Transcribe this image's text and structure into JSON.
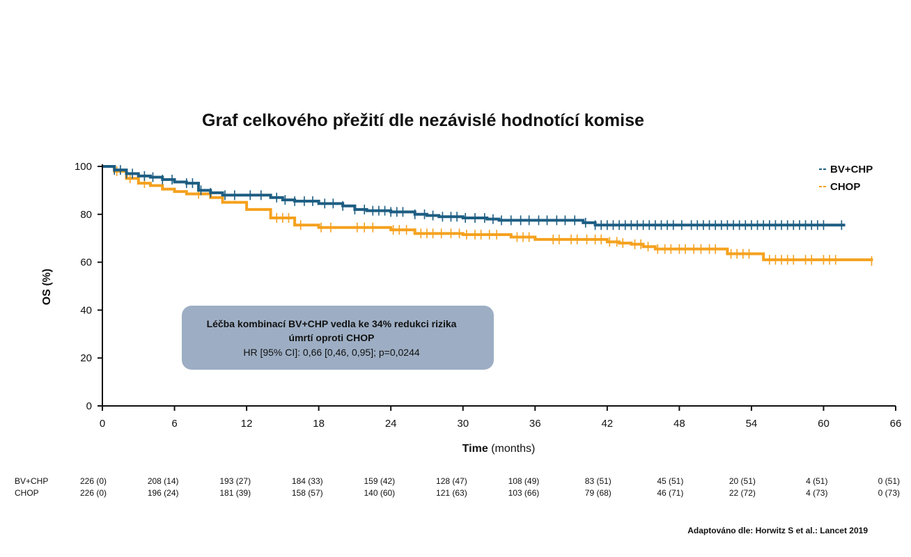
{
  "chart_data": {
    "type": "line",
    "subtype": "kaplan-meier",
    "title": "Graf celkového přežití dle nezávislé hodnotící komise",
    "ylabel": "OS (%)",
    "xlabel_bold": "Time",
    "xlabel_rest": "(months)",
    "xlim": [
      0,
      66
    ],
    "ylim": [
      0,
      100
    ],
    "xticks": [
      0,
      6,
      12,
      18,
      24,
      30,
      36,
      42,
      48,
      54,
      60,
      66
    ],
    "yticks": [
      0,
      20,
      40,
      60,
      80,
      100
    ],
    "grid": false,
    "legend_position": "top-right",
    "series": [
      {
        "name": "BV+CHP",
        "color": "#1d5d82",
        "x": [
          0,
          1,
          2,
          3,
          4,
          5,
          6,
          7,
          8,
          9,
          10,
          12,
          14,
          15,
          16,
          18,
          20,
          21,
          22,
          24,
          26,
          27,
          28,
          30,
          32,
          33,
          36,
          40,
          41,
          61.8
        ],
        "y": [
          100,
          98.5,
          97,
          96,
          95.5,
          94.5,
          93.5,
          93,
          90,
          89,
          88,
          88,
          87,
          86,
          85.5,
          84.5,
          83.5,
          82,
          81.5,
          81,
          80,
          79.5,
          79,
          78.5,
          78,
          77.5,
          77.5,
          76.5,
          75.5,
          75.5
        ],
        "censor_x": [
          1,
          1.5,
          2,
          2.5,
          3.5,
          4.2,
          5,
          5.8,
          7,
          7.5,
          8.2,
          9,
          10.2,
          11,
          12.3,
          13.2,
          14.5,
          15.2,
          16,
          16.8,
          17.5,
          18.5,
          19.2,
          20,
          21,
          21.8,
          22.5,
          23,
          23.5,
          24,
          24.5,
          25,
          26,
          26.8,
          27.5,
          28.3,
          29,
          29.5,
          30.2,
          31,
          31.8,
          32.5,
          33.2,
          34,
          34.8,
          35.5,
          36.3,
          37,
          37.8,
          38.5,
          39.3,
          40.2,
          41,
          41.5,
          42,
          42.5,
          43,
          43.5,
          44,
          44.5,
          45,
          45.5,
          46,
          46.5,
          47,
          47.5,
          48.2,
          49,
          49.5,
          50,
          50.5,
          51,
          51.5,
          52,
          52.5,
          53,
          53.5,
          54,
          54.5,
          55,
          55.5,
          56,
          56.5,
          57,
          57.5,
          58,
          58.5,
          59,
          59.5,
          60,
          61.5
        ]
      },
      {
        "name": "CHOP",
        "color": "#f5a11e",
        "x": [
          0,
          1,
          2,
          3,
          4,
          5,
          6,
          7,
          9,
          10,
          12,
          14,
          16,
          18,
          21,
          24,
          26,
          30,
          34,
          36,
          42,
          43,
          44,
          45,
          46,
          47,
          52,
          55,
          64
        ],
        "y": [
          100,
          98,
          95,
          93,
          92,
          90.5,
          89.5,
          88.5,
          87,
          85,
          82,
          78.5,
          75.5,
          74.5,
          74.5,
          73.5,
          72,
          71.5,
          70.5,
          69.5,
          68.5,
          68,
          67.5,
          66.5,
          65.5,
          65.5,
          63.5,
          61,
          60.5
        ],
        "censor_x": [
          1.2,
          2.3,
          3.5,
          8,
          14.5,
          15,
          15.5,
          16.5,
          18.2,
          19,
          21.2,
          21.8,
          22.5,
          24.2,
          24.7,
          25.3,
          26.5,
          27,
          27.5,
          28.2,
          29,
          29.7,
          30.3,
          31,
          31.5,
          32.2,
          32.8,
          34.5,
          35,
          35.5,
          37.5,
          38,
          39,
          39.5,
          40.3,
          41,
          41.5,
          42.2,
          42.8,
          43.3,
          44.3,
          44.8,
          45.4,
          46.2,
          46.8,
          47.3,
          48,
          48.5,
          49.2,
          49.8,
          50.5,
          51,
          52.3,
          52.8,
          53.3,
          53.8,
          55.5,
          56,
          56.5,
          57,
          57.5,
          58.5,
          59,
          60,
          60.5,
          61,
          64
        ]
      }
    ],
    "annotation": {
      "line1": "Léčba kombinací BV+CHP vedla ke 34% redukci rizika",
      "line2": "úmrtí oproti CHOP",
      "line3": "HR [95% CI]: 0,66 [0,46, 0,95]; p=0,0244"
    },
    "risk_table": {
      "timepoints": [
        0,
        6,
        12,
        18,
        24,
        30,
        36,
        42,
        48,
        54,
        60,
        66
      ],
      "rows": [
        {
          "label": "BV+CHP",
          "values": [
            "226 (0)",
            "208 (14)",
            "193 (27)",
            "184 (33)",
            "159 (42)",
            "128 (47)",
            "108 (49)",
            "83 (51)",
            "45 (51)",
            "20 (51)",
            "4 (51)",
            "0 (51)"
          ]
        },
        {
          "label": "CHOP",
          "values": [
            "226 (0)",
            "196 (24)",
            "181 (39)",
            "158 (57)",
            "140 (60)",
            "121 (63)",
            "103 (66)",
            "79 (68)",
            "46 (71)",
            "22 (72)",
            "4 (73)",
            "0 (73)"
          ]
        }
      ]
    },
    "source": "Adaptováno dle: Horwitz S et al.: Lancet 2019",
    "annotation_box_color": "#9daec4"
  }
}
